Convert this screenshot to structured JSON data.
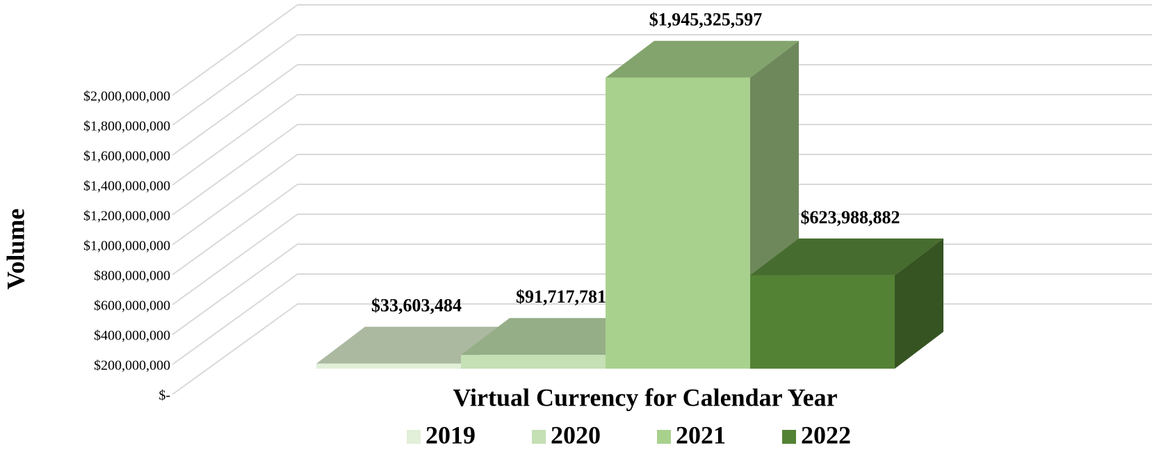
{
  "chart_data": {
    "type": "bar3d",
    "xlabel": "Virtual Currency for Calendar Year",
    "ylabel": "Volume",
    "ylim": [
      0,
      2000000000
    ],
    "yticks": [
      {
        "value": 0,
        "label": "$-"
      },
      {
        "value": 200000000,
        "label": "$200,000,000"
      },
      {
        "value": 400000000,
        "label": "$400,000,000"
      },
      {
        "value": 600000000,
        "label": "$600,000,000"
      },
      {
        "value": 800000000,
        "label": "$800,000,000"
      },
      {
        "value": 1000000000,
        "label": "$1,000,000,000"
      },
      {
        "value": 1200000000,
        "label": "$1,200,000,000"
      },
      {
        "value": 1400000000,
        "label": "$1,400,000,000"
      },
      {
        "value": 1600000000,
        "label": "$1,600,000,000"
      },
      {
        "value": 1800000000,
        "label": "$1,800,000,000"
      },
      {
        "value": 2000000000,
        "label": "$2,000,000,000"
      }
    ],
    "grid": true,
    "legend": "bottom",
    "series": [
      {
        "name": "2019",
        "color": "#e2efd9",
        "values": [
          33603484
        ],
        "value_labels": [
          "$33,603,484"
        ]
      },
      {
        "name": "2020",
        "color": "#c5e0b4",
        "values": [
          91717781
        ],
        "value_labels": [
          "$91,717,781"
        ]
      },
      {
        "name": "2021",
        "color": "#a9d18e",
        "values": [
          1945325597
        ],
        "value_labels": [
          "$1,945,325,597"
        ]
      },
      {
        "name": "2022",
        "color": "#548235",
        "values": [
          623988882
        ],
        "value_labels": [
          "$623,988,882"
        ]
      }
    ]
  }
}
